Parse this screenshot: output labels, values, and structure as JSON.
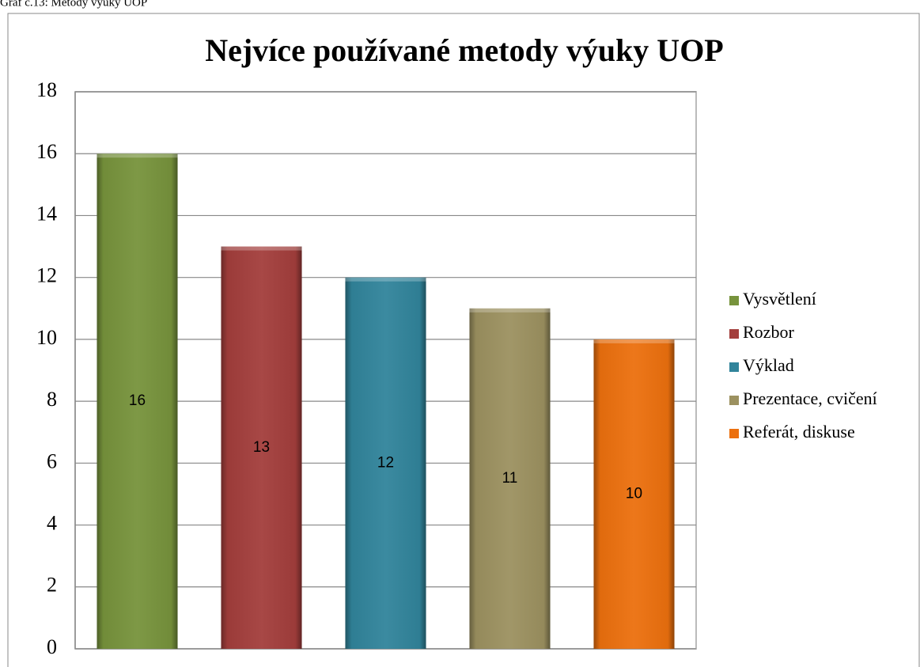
{
  "caption": "Graf č.13: Metody výuky UOP",
  "chart_data": {
    "type": "bar",
    "title": "Nejvíce používané metody výuky UOP",
    "categories": [
      "Vysvětlení",
      "Rozbor",
      "Výklad",
      "Prezentace, cvičení",
      "Referát, diskuse"
    ],
    "values": [
      16,
      13,
      12,
      11,
      10
    ],
    "colors": [
      "#77933c",
      "#a33e3c",
      "#31849b",
      "#9c9160",
      "#ec700e"
    ],
    "ylim": [
      0,
      18
    ],
    "yticks": [
      0,
      2,
      4,
      6,
      8,
      10,
      12,
      14,
      16,
      18
    ],
    "grid": true,
    "legend": "right"
  }
}
